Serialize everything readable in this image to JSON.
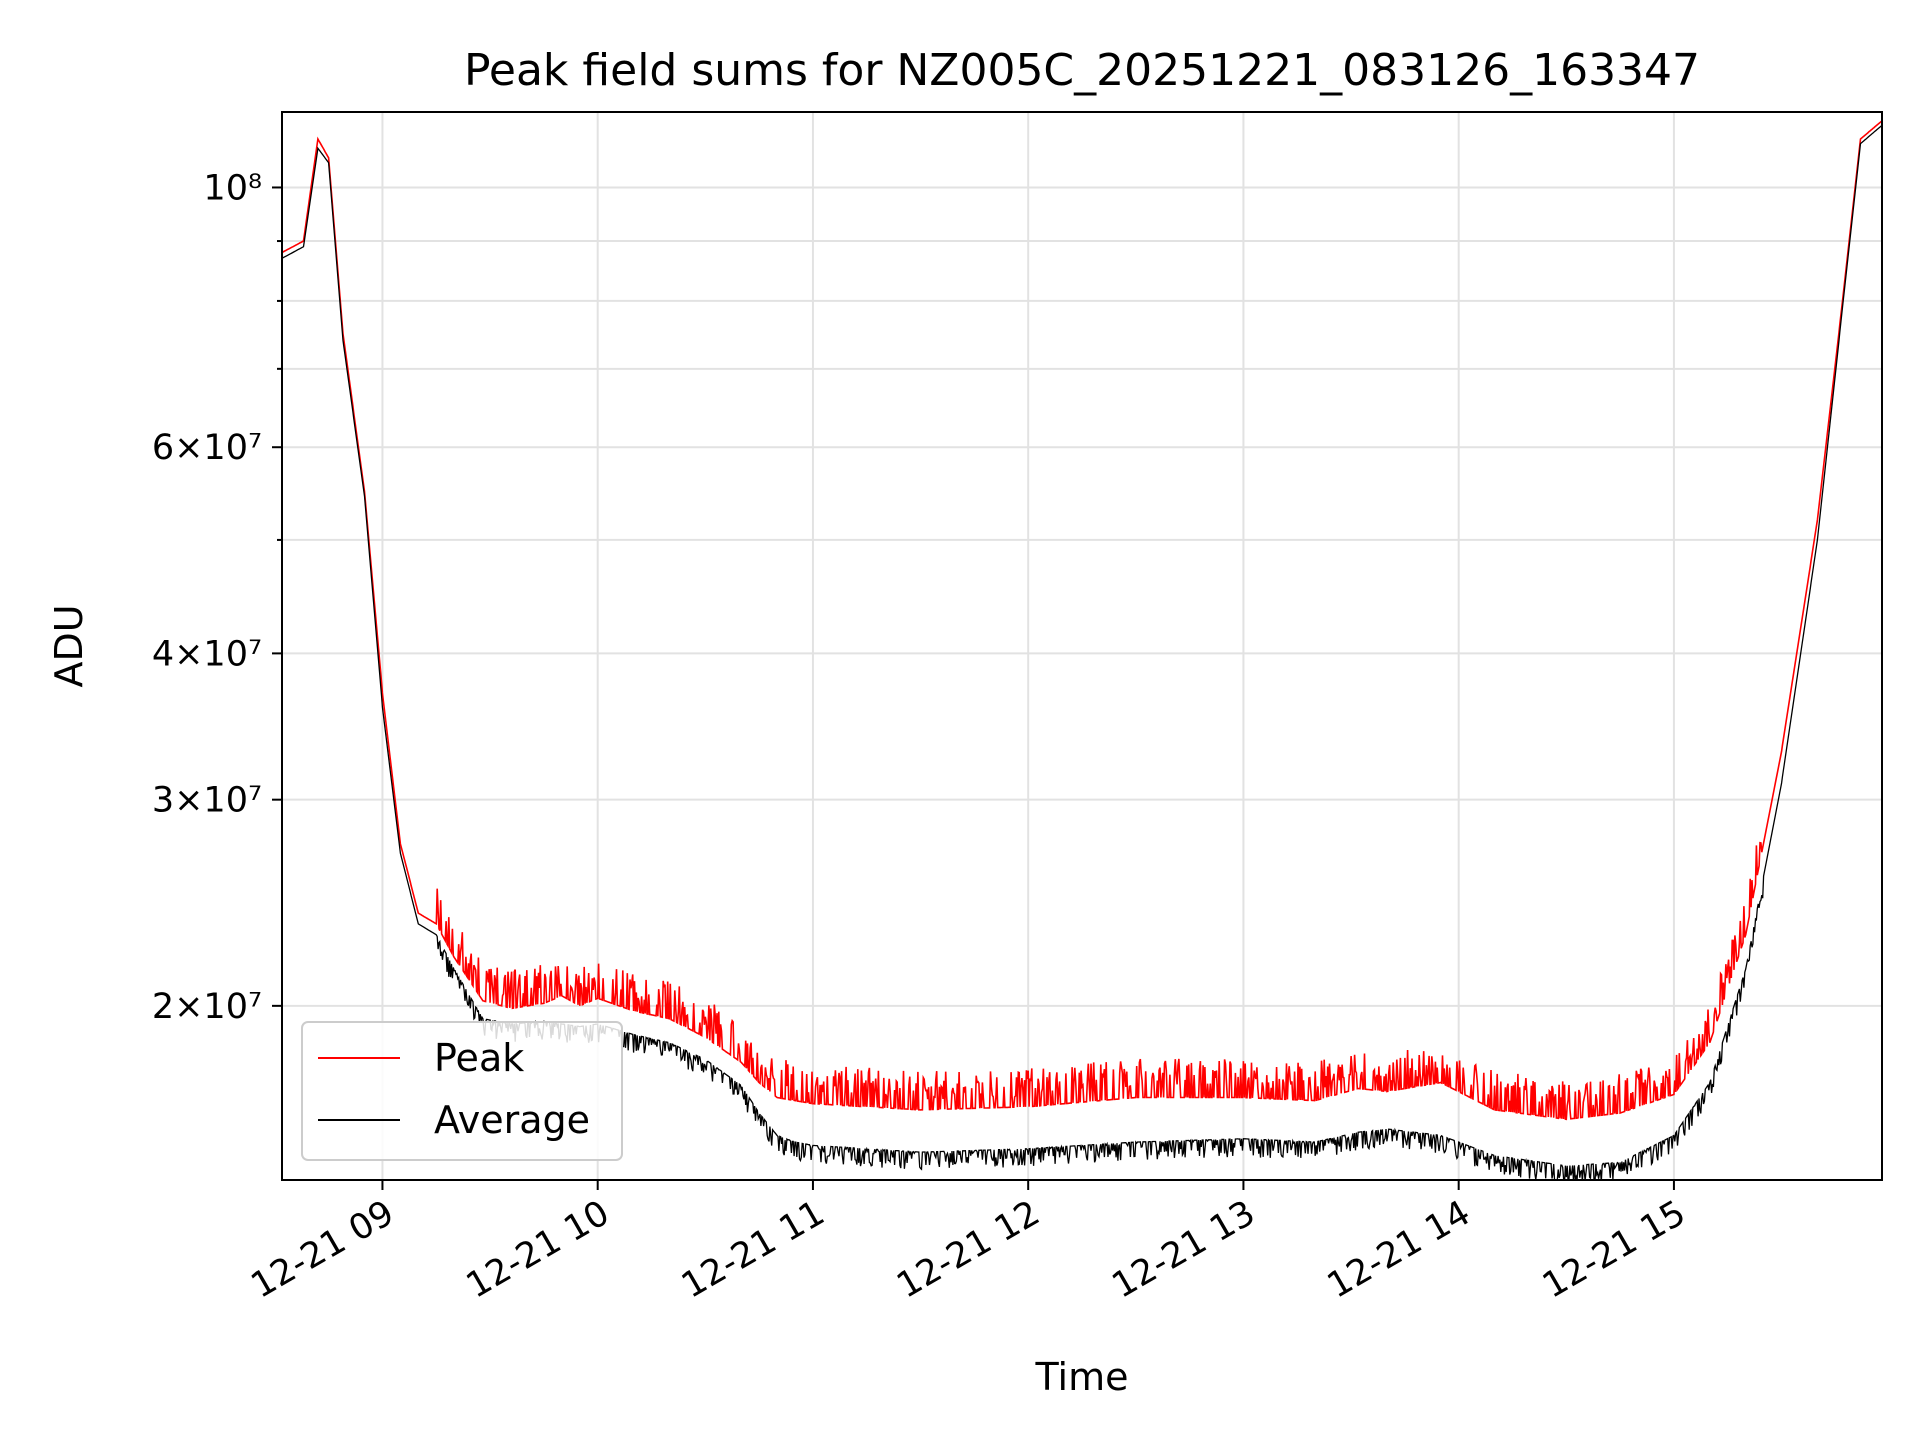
{
  "chart_data": {
    "type": "line",
    "title": "Peak field sums for NZ005C_20251221_083126_163347",
    "xlabel": "Time",
    "ylabel": "ADU",
    "yscale": "log",
    "grid": true,
    "legend_position": "lower left",
    "x_ticks": [
      "12-21 09",
      "12-21 10",
      "12-21 11",
      "12-21 12",
      "12-21 13",
      "12-21 14",
      "12-21 15"
    ],
    "xlim": [
      "2025-12-21 08:32",
      "2025-12-21 15:58"
    ],
    "ylim": [
      14200000,
      116000000
    ],
    "series": [
      {
        "name": "Peak",
        "color": "#ff0000",
        "x": [
          "2025-12-21 08:32",
          "2025-12-21 08:38",
          "2025-12-21 08:42",
          "2025-12-21 08:45",
          "2025-12-21 08:49",
          "2025-12-21 08:55",
          "2025-12-21 09:00",
          "2025-12-21 09:05",
          "2025-12-21 09:10",
          "2025-12-21 09:15",
          "2025-12-21 09:20",
          "2025-12-21 09:28",
          "2025-12-21 09:36",
          "2025-12-21 09:45",
          "2025-12-21 09:50",
          "2025-12-21 09:55",
          "2025-12-21 10:00",
          "2025-12-21 10:10",
          "2025-12-21 10:20",
          "2025-12-21 10:30",
          "2025-12-21 10:40",
          "2025-12-21 10:45",
          "2025-12-21 10:50",
          "2025-12-21 10:55",
          "2025-12-21 11:00",
          "2025-12-21 11:30",
          "2025-12-21 12:00",
          "2025-12-21 12:30",
          "2025-12-21 13:00",
          "2025-12-21 13:20",
          "2025-12-21 13:32",
          "2025-12-21 13:40",
          "2025-12-21 13:55",
          "2025-12-21 14:10",
          "2025-12-21 14:30",
          "2025-12-21 14:45",
          "2025-12-21 15:00",
          "2025-12-21 15:10",
          "2025-12-21 15:20",
          "2025-12-21 15:30",
          "2025-12-21 15:40",
          "2025-12-21 15:47",
          "2025-12-21 15:52",
          "2025-12-21 15:58"
        ],
        "y": [
          88000000,
          90000000,
          110000000,
          106000000,
          75000000,
          55000000,
          37000000,
          27500000,
          24000000,
          23500000,
          22000000,
          20200000,
          19900000,
          20100000,
          20400000,
          20000000,
          20300000,
          19800000,
          19500000,
          18800000,
          17900000,
          17200000,
          16700000,
          16600000,
          16500000,
          16300000,
          16400000,
          16700000,
          16700000,
          16600000,
          17000000,
          16900000,
          17200000,
          16300000,
          16000000,
          16200000,
          16800000,
          18600000,
          23000000,
          33000000,
          52000000,
          80000000,
          110000000,
          114000000
        ]
      },
      {
        "name": "Average",
        "color": "#000000",
        "x": [
          "2025-12-21 08:32",
          "2025-12-21 08:38",
          "2025-12-21 08:42",
          "2025-12-21 08:45",
          "2025-12-21 08:49",
          "2025-12-21 08:55",
          "2025-12-21 09:00",
          "2025-12-21 09:05",
          "2025-12-21 09:10",
          "2025-12-21 09:15",
          "2025-12-21 09:20",
          "2025-12-21 09:28",
          "2025-12-21 09:36",
          "2025-12-21 09:45",
          "2025-12-21 09:50",
          "2025-12-21 09:55",
          "2025-12-21 10:00",
          "2025-12-21 10:10",
          "2025-12-21 10:20",
          "2025-12-21 10:30",
          "2025-12-21 10:40",
          "2025-12-21 10:45",
          "2025-12-21 10:50",
          "2025-12-21 10:55",
          "2025-12-21 11:00",
          "2025-12-21 11:30",
          "2025-12-21 12:00",
          "2025-12-21 12:30",
          "2025-12-21 13:00",
          "2025-12-21 13:20",
          "2025-12-21 13:32",
          "2025-12-21 13:40",
          "2025-12-21 13:55",
          "2025-12-21 14:10",
          "2025-12-21 14:30",
          "2025-12-21 14:45",
          "2025-12-21 15:00",
          "2025-12-21 15:10",
          "2025-12-21 15:20",
          "2025-12-21 15:30",
          "2025-12-21 15:40",
          "2025-12-21 15:47",
          "2025-12-21 15:52",
          "2025-12-21 15:58"
        ],
        "y": [
          87000000,
          89000000,
          108000000,
          105000000,
          74000000,
          54500000,
          36000000,
          27000000,
          23500000,
          23000000,
          21500000,
          19500000,
          19300000,
          19400000,
          19300000,
          19200000,
          19300000,
          18900000,
          18600000,
          18000000,
          17100000,
          16200000,
          15500000,
          15300000,
          15200000,
          15000000,
          15100000,
          15300000,
          15400000,
          15300000,
          15600000,
          15700000,
          15500000,
          14900000,
          14600000,
          14700000,
          15500000,
          17200000,
          21500000,
          31000000,
          50000000,
          79000000,
          109000000,
          113000000
        ]
      }
    ]
  }
}
